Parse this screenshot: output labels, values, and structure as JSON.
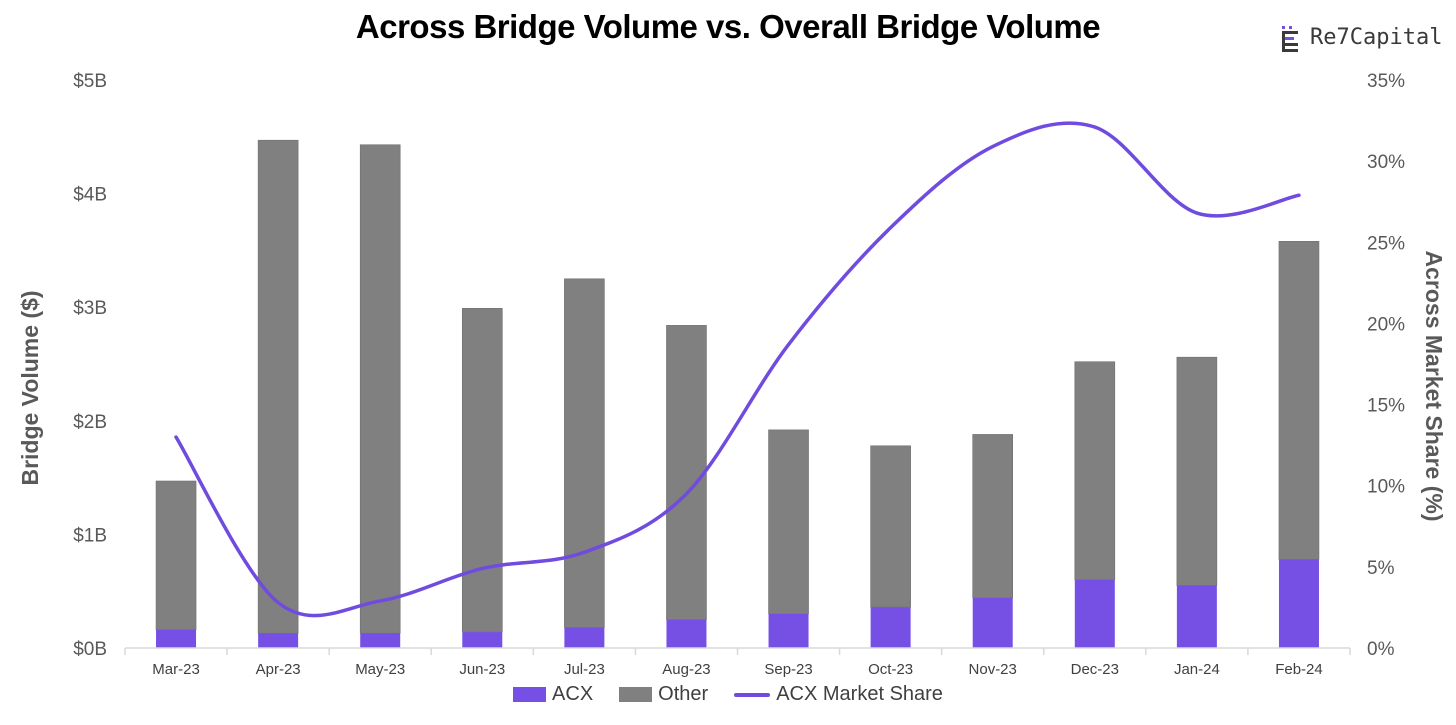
{
  "colors": {
    "acx": "#7650E5",
    "other": "#808080",
    "share_line": "#6F4BE0",
    "axis": "#D9D9D9"
  },
  "logo": {
    "text": "Re7Capital",
    "icon": "re7-logo-icon"
  },
  "chart_data": {
    "type": "bar",
    "stacked": true,
    "title": "Across Bridge Volume vs. Overall Bridge Volume",
    "ylabel": "Bridge Volume ($)",
    "y2label": "Across Market Share (%)",
    "categories": [
      "Mar-23",
      "Apr-23",
      "May-23",
      "Jun-23",
      "Jul-23",
      "Aug-23",
      "Sep-23",
      "Oct-23",
      "Nov-23",
      "Dec-23",
      "Jan-24",
      "Feb-24"
    ],
    "ylim": [
      0,
      5
    ],
    "y_ticks": [
      "$0B",
      "$1B",
      "$2B",
      "$3B",
      "$4B",
      "$5B"
    ],
    "y2lim": [
      0,
      35
    ],
    "y2_ticks": [
      "0%",
      "5%",
      "10%",
      "15%",
      "20%",
      "25%",
      "30%",
      "35%"
    ],
    "series": [
      {
        "name": "ACX",
        "kind": "bar",
        "axis": "left",
        "values": [
          0.16,
          0.13,
          0.13,
          0.14,
          0.18,
          0.25,
          0.3,
          0.36,
          0.44,
          0.6,
          0.55,
          0.78
        ]
      },
      {
        "name": "Other",
        "kind": "bar",
        "axis": "left",
        "values": [
          1.31,
          4.34,
          4.3,
          2.85,
          3.07,
          2.59,
          1.62,
          1.42,
          1.44,
          1.92,
          2.01,
          2.8
        ]
      },
      {
        "name": "ACX Market Share",
        "kind": "line",
        "axis": "right",
        "values": [
          13.0,
          2.8,
          2.9,
          4.9,
          5.9,
          9.5,
          18.7,
          25.9,
          30.9,
          32.1,
          26.8,
          27.9
        ]
      }
    ],
    "legend": "bottom",
    "grid": false
  }
}
